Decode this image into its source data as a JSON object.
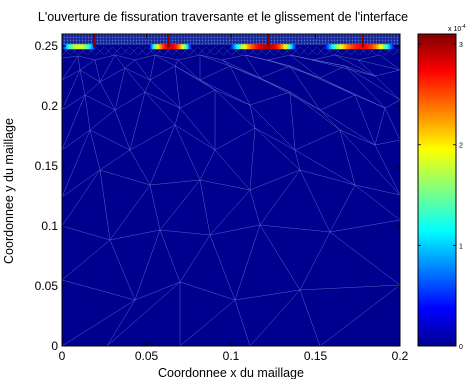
{
  "chart_data": {
    "type": "heatmap",
    "title": "L'ouverture de fissuration traversante et le glissement de l'interface",
    "xlabel": "Coordonnee x du maillage",
    "ylabel": "Coordonnee y du maillage",
    "xlim": [
      0,
      0.2
    ],
    "ylim": [
      0,
      0.26
    ],
    "xticks": [
      "0",
      "0.05",
      "0.1",
      "0.15",
      "0.2"
    ],
    "xtick_values": [
      0,
      0.05,
      0.1,
      0.15,
      0.2
    ],
    "yticks": [
      "0",
      "0.05",
      "0.1",
      "0.15",
      "0.2",
      "0.25"
    ],
    "ytick_values": [
      0,
      0.05,
      0.1,
      0.15,
      0.2,
      0.25
    ],
    "background_value": 0,
    "colorbar": {
      "colormap": "jet",
      "range": [
        0,
        0.00031
      ],
      "ticks": [
        "0",
        "1",
        "2",
        "3"
      ],
      "tick_values": [
        0,
        1,
        2,
        3
      ],
      "multiplier": "x 10",
      "exponent": "-4"
    },
    "interface_slip_bands": [
      {
        "x_start": 0.0,
        "x_end": 0.02,
        "peak_x": 0.01,
        "peak_value": 0.00018
      },
      {
        "x_start": 0.052,
        "x_end": 0.076,
        "peak_x": 0.064,
        "peak_value": 0.00028
      },
      {
        "x_start": 0.1,
        "x_end": 0.138,
        "peak_x": 0.122,
        "peak_value": 0.00029
      },
      {
        "x_start": 0.156,
        "x_end": 0.196,
        "peak_x": 0.178,
        "peak_value": 0.00027
      }
    ],
    "cracks": [
      {
        "x": 0.019,
        "y_from": 0.249,
        "y_to": 0.26,
        "value": 0.00031
      },
      {
        "x": 0.063,
        "y_from": 0.249,
        "y_to": 0.26,
        "value": 0.00031
      },
      {
        "x": 0.122,
        "y_from": 0.249,
        "y_to": 0.26,
        "value": 0.00031
      },
      {
        "x": 0.178,
        "y_from": 0.249,
        "y_to": 0.26,
        "value": 0.00031
      }
    ],
    "interface_y": 0.249,
    "mesh": "triangular",
    "grid": false,
    "legend": "colorbar-right"
  },
  "colors": {
    "background_field": "#00008f",
    "mesh_lines": "#6b7fd0"
  }
}
